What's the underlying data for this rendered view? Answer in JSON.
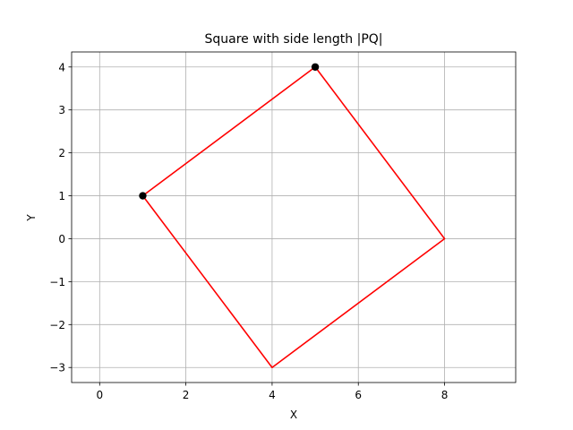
{
  "chart_data": {
    "type": "line",
    "title": "Square with side length |PQ|",
    "xlabel": "X",
    "ylabel": "Y",
    "xlim": [
      -0.65,
      9.65
    ],
    "ylim": [
      -3.35,
      4.35
    ],
    "xticks": [
      0,
      2,
      4,
      6,
      8
    ],
    "xtick_labels": [
      "0",
      "2",
      "4",
      "6",
      "8"
    ],
    "yticks": [
      -3,
      -2,
      -1,
      0,
      1,
      2,
      3,
      4
    ],
    "ytick_labels": [
      "−3",
      "−2",
      "−1",
      "0",
      "1",
      "2",
      "3",
      "4"
    ],
    "grid": true,
    "series": [
      {
        "kind": "polygon",
        "color": "#ff0000",
        "x": [
          1,
          5,
          8,
          4,
          1
        ],
        "y": [
          1,
          4,
          0,
          -3,
          1
        ]
      },
      {
        "kind": "points",
        "color": "#000000",
        "x": [
          1,
          5
        ],
        "y": [
          1,
          4
        ]
      }
    ]
  }
}
